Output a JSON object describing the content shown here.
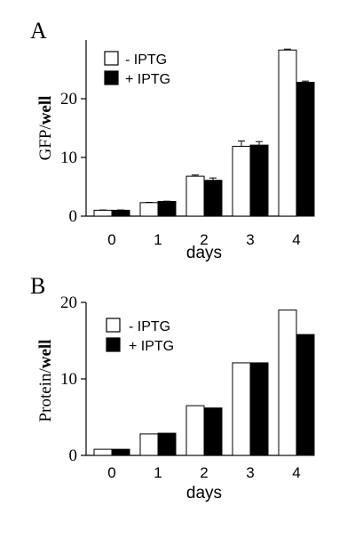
{
  "chart_data": [
    {
      "type": "bar",
      "panel_label": "A",
      "categories": [
        "0",
        "1",
        "2",
        "3",
        "4"
      ],
      "xlabel": "days",
      "ylabel": {
        "prefix": "GFP/",
        "bold": "well"
      },
      "ylim": [
        0,
        30
      ],
      "yticks": [
        "0",
        "10",
        "20"
      ],
      "ytick_values": [
        0,
        10,
        20
      ],
      "legend_position": "top-left",
      "grid": false,
      "error_bars": true,
      "series": [
        {
          "name": "- IPTG",
          "color": "#ffffff",
          "values": [
            1.0,
            2.3,
            6.8,
            11.9,
            28.3
          ],
          "errors": [
            0.05,
            0.05,
            0.2,
            0.9,
            0.15
          ]
        },
        {
          "name": "+ IPTG",
          "color": "#000000",
          "values": [
            1.0,
            2.5,
            6.1,
            12.1,
            22.8
          ],
          "errors": [
            0.05,
            0.05,
            0.4,
            0.6,
            0.2
          ]
        }
      ]
    },
    {
      "type": "bar",
      "panel_label": "B",
      "categories": [
        "0",
        "1",
        "2",
        "3",
        "4"
      ],
      "xlabel": "days",
      "ylabel": {
        "prefix": "Protein/",
        "bold": "well"
      },
      "ylim": [
        0,
        20
      ],
      "yticks": [
        "0",
        "10",
        "20"
      ],
      "ytick_values": [
        0,
        10,
        20
      ],
      "legend_position": "top-left",
      "grid": false,
      "error_bars": false,
      "series": [
        {
          "name": "- IPTG",
          "color": "#ffffff",
          "values": [
            0.8,
            2.8,
            6.5,
            12.1,
            19.0
          ]
        },
        {
          "name": "+ IPTG",
          "color": "#000000",
          "values": [
            0.8,
            2.9,
            6.2,
            12.1,
            15.8
          ]
        }
      ]
    }
  ]
}
